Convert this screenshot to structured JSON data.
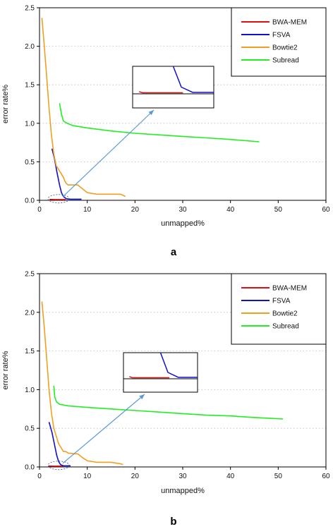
{
  "chart_data": [
    {
      "type": "line",
      "panel_label": "a",
      "xlabel": "unmapped%",
      "ylabel": "error rate%",
      "xlim": [
        0,
        60
      ],
      "ylim": [
        0,
        2.5
      ],
      "xticks": [
        "0",
        "10",
        "20",
        "30",
        "40",
        "50",
        "60"
      ],
      "yticks": [
        "0.0",
        "0.5",
        "1.0",
        "1.5",
        "2.0",
        "2.5"
      ],
      "grid": "horizontal dotted",
      "legend": {
        "position": "top-right",
        "entries": [
          "BWA-MEM",
          "FSVA",
          "Bowtie2",
          "Subread"
        ]
      },
      "series": [
        {
          "name": "BWA-MEM",
          "color": "#dd1111",
          "x": [
            2.1,
            3.2,
            4.5,
            5.5
          ],
          "y": [
            0.012,
            0.01,
            0.01,
            0.01
          ]
        },
        {
          "name": "FSVA",
          "color": "#1111cc",
          "x": [
            2.6,
            3.1,
            3.6,
            4.2,
            4.6,
            5.0,
            5.6,
            6.5,
            8.8
          ],
          "y": [
            0.67,
            0.55,
            0.38,
            0.2,
            0.1,
            0.05,
            0.02,
            0.015,
            0.015
          ]
        },
        {
          "name": "Bowtie2",
          "color": "#f0a020",
          "x": [
            0.5,
            1.0,
            1.5,
            2.0,
            2.5,
            3.0,
            3.5,
            4.0,
            4.5,
            5.0,
            5.3,
            5.6,
            6.0,
            6.5,
            7.5,
            8.0,
            9.0,
            10.0,
            12.0,
            15.0,
            17.0,
            18.0
          ],
          "y": [
            2.37,
            2.0,
            1.6,
            1.2,
            0.85,
            0.6,
            0.45,
            0.4,
            0.35,
            0.3,
            0.25,
            0.22,
            0.2,
            0.2,
            0.2,
            0.2,
            0.15,
            0.1,
            0.08,
            0.08,
            0.08,
            0.05
          ]
        },
        {
          "name": "Subread",
          "color": "#22ee22",
          "x": [
            4.2,
            4.6,
            5.0,
            5.8,
            7.0,
            10.0,
            15.0,
            20.0,
            25.0,
            30.0,
            35.0,
            40.0,
            46.0
          ],
          "y": [
            1.26,
            1.12,
            1.03,
            1.0,
            0.97,
            0.94,
            0.9,
            0.87,
            0.85,
            0.83,
            0.81,
            0.79,
            0.76
          ]
        }
      ],
      "annotations": [
        "dashed ellipse marking the low-unmapped / low-error region",
        "arrow pointing to a zoomed inset of that region"
      ]
    },
    {
      "type": "line",
      "panel_label": "b",
      "xlabel": "unmapped%",
      "ylabel": "error rate%",
      "xlim": [
        0,
        60
      ],
      "ylim": [
        0,
        2.5
      ],
      "xticks": [
        "0",
        "10",
        "20",
        "30",
        "40",
        "50",
        "60"
      ],
      "yticks": [
        "0.0",
        "0.5",
        "1.0",
        "1.5",
        "2.0",
        "2.5"
      ],
      "grid": "horizontal dotted",
      "legend": {
        "position": "top-right",
        "entries": [
          "BWA-MEM",
          "FSVA",
          "Bowtie2",
          "Subread"
        ]
      },
      "series": [
        {
          "name": "BWA-MEM",
          "color": "#dd1111",
          "x": [
            1.9,
            3.0,
            4.2,
            5.0
          ],
          "y": [
            0.012,
            0.01,
            0.01,
            0.01
          ]
        },
        {
          "name": "FSVA",
          "color": "#1111cc",
          "x": [
            2.0,
            2.6,
            3.1,
            3.6,
            4.0,
            4.4,
            5.0,
            6.5
          ],
          "y": [
            0.58,
            0.45,
            0.3,
            0.15,
            0.07,
            0.03,
            0.015,
            0.015
          ]
        },
        {
          "name": "Bowtie2",
          "color": "#f0a020",
          "x": [
            0.5,
            1.0,
            1.5,
            2.0,
            2.5,
            3.0,
            3.5,
            4.0,
            4.5,
            5.0,
            5.5,
            6.0,
            7.5,
            8.0,
            9.0,
            10.0,
            12.0,
            15.0,
            17.0,
            17.5
          ],
          "y": [
            2.14,
            1.8,
            1.4,
            1.0,
            0.7,
            0.5,
            0.4,
            0.3,
            0.25,
            0.2,
            0.2,
            0.18,
            0.17,
            0.17,
            0.12,
            0.08,
            0.06,
            0.06,
            0.04,
            0.03
          ]
        },
        {
          "name": "Subread",
          "color": "#22ee22",
          "x": [
            3.0,
            3.2,
            3.6,
            4.2,
            6.0,
            10.0,
            15.0,
            20.0,
            25.0,
            30.0,
            35.0,
            40.0,
            45.0,
            51.0
          ],
          "y": [
            1.05,
            0.9,
            0.84,
            0.81,
            0.79,
            0.77,
            0.75,
            0.73,
            0.71,
            0.69,
            0.67,
            0.66,
            0.64,
            0.62
          ]
        }
      ],
      "annotations": [
        "dashed ellipse marking the low-unmapped / low-error region",
        "arrow pointing to a zoomed inset of that region"
      ]
    }
  ]
}
